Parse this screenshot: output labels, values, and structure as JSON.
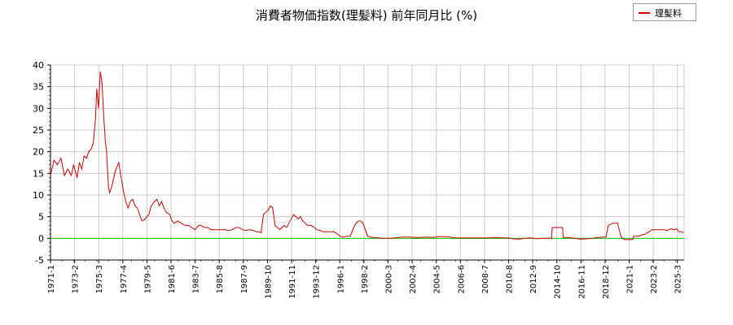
{
  "title": "消費者物価指数(理髪料) 前年同月比 (%)",
  "legend": {
    "label": "理髪料"
  },
  "colors": {
    "series": "#cc0000",
    "zero_line": "#00cc00",
    "grid": "#cccccc",
    "axis": "#000000"
  },
  "chart_data": {
    "type": "line",
    "title": "消費者物価指数(理髪料) 前年同月比 (%)",
    "xlabel": "",
    "ylabel": "",
    "grid": true,
    "legend_position": "top-right",
    "ylim": [
      -5,
      40
    ],
    "yticks": [
      -5,
      0,
      5,
      10,
      15,
      20,
      25,
      30,
      35,
      40
    ],
    "xticks": [
      "1971-1",
      "1973-2",
      "1975-3",
      "1977-4",
      "1979-5",
      "1981-6",
      "1983-7",
      "1985-8",
      "1987-9",
      "1989-10",
      "1991-11",
      "1993-12",
      "1996-1",
      "1998-2",
      "2000-3",
      "2002-4",
      "2004-5",
      "2006-6",
      "2008-7",
      "2010-8",
      "2012-9",
      "2014-10",
      "2016-11",
      "2018-12",
      "2021-1",
      "2023-2",
      "2025-3"
    ],
    "xrange": [
      1971.0,
      2025.75
    ],
    "series": [
      {
        "name": "理髪料",
        "points": [
          [
            1971.0,
            14.5
          ],
          [
            1971.3,
            18.0
          ],
          [
            1971.6,
            17.0
          ],
          [
            1971.9,
            18.5
          ],
          [
            1972.2,
            14.5
          ],
          [
            1972.5,
            16.0
          ],
          [
            1972.8,
            14.5
          ],
          [
            1973.0,
            17.0
          ],
          [
            1973.3,
            14.0
          ],
          [
            1973.5,
            17.5
          ],
          [
            1973.7,
            16.0
          ],
          [
            1973.9,
            19.0
          ],
          [
            1974.1,
            18.5
          ],
          [
            1974.3,
            20.0
          ],
          [
            1974.5,
            20.5
          ],
          [
            1974.7,
            22.0
          ],
          [
            1974.9,
            28.0
          ],
          [
            1975.0,
            34.5
          ],
          [
            1975.15,
            30.0
          ],
          [
            1975.3,
            38.5
          ],
          [
            1975.45,
            36.0
          ],
          [
            1975.6,
            28.0
          ],
          [
            1975.75,
            22.0
          ],
          [
            1975.85,
            20.0
          ],
          [
            1976.0,
            12.0
          ],
          [
            1976.1,
            10.5
          ],
          [
            1976.3,
            12.0
          ],
          [
            1976.6,
            15.5
          ],
          [
            1976.9,
            17.5
          ],
          [
            1977.1,
            14.0
          ],
          [
            1977.3,
            11.0
          ],
          [
            1977.5,
            8.5
          ],
          [
            1977.7,
            7.0
          ],
          [
            1977.9,
            8.5
          ],
          [
            1978.1,
            9.0
          ],
          [
            1978.3,
            7.5
          ],
          [
            1978.5,
            7.0
          ],
          [
            1978.7,
            5.5
          ],
          [
            1978.9,
            4.0
          ],
          [
            1979.2,
            4.5
          ],
          [
            1979.5,
            5.5
          ],
          [
            1979.7,
            7.5
          ],
          [
            1980.0,
            8.5
          ],
          [
            1980.2,
            9.0
          ],
          [
            1980.4,
            7.5
          ],
          [
            1980.6,
            8.5
          ],
          [
            1980.8,
            7.0
          ],
          [
            1981.0,
            6.0
          ],
          [
            1981.3,
            5.5
          ],
          [
            1981.5,
            4.0
          ],
          [
            1981.7,
            3.5
          ],
          [
            1982.0,
            4.0
          ],
          [
            1982.3,
            3.5
          ],
          [
            1982.6,
            3.0
          ],
          [
            1982.9,
            3.0
          ],
          [
            1983.2,
            2.5
          ],
          [
            1983.5,
            2.0
          ],
          [
            1983.8,
            3.0
          ],
          [
            1984.0,
            3.0
          ],
          [
            1984.3,
            2.5
          ],
          [
            1984.6,
            2.5
          ],
          [
            1984.9,
            2.0
          ],
          [
            1985.2,
            2.0
          ],
          [
            1985.5,
            2.0
          ],
          [
            1985.8,
            2.0
          ],
          [
            1986.1,
            2.0
          ],
          [
            1986.4,
            1.8
          ],
          [
            1986.7,
            2.0
          ],
          [
            1987.0,
            2.5
          ],
          [
            1987.3,
            2.5
          ],
          [
            1987.6,
            2.0
          ],
          [
            1987.9,
            1.8
          ],
          [
            1988.2,
            2.0
          ],
          [
            1988.5,
            1.8
          ],
          [
            1988.8,
            1.5
          ],
          [
            1989.0,
            1.5
          ],
          [
            1989.2,
            1.3
          ],
          [
            1989.4,
            5.5
          ],
          [
            1989.6,
            6.0
          ],
          [
            1989.8,
            6.5
          ],
          [
            1990.0,
            7.5
          ],
          [
            1990.2,
            7.0
          ],
          [
            1990.4,
            3.0
          ],
          [
            1990.6,
            2.5
          ],
          [
            1990.8,
            2.0
          ],
          [
            1991.0,
            2.5
          ],
          [
            1991.2,
            3.0
          ],
          [
            1991.4,
            2.5
          ],
          [
            1991.6,
            3.5
          ],
          [
            1991.8,
            4.5
          ],
          [
            1992.0,
            5.5
          ],
          [
            1992.2,
            5.0
          ],
          [
            1992.4,
            4.5
          ],
          [
            1992.6,
            5.0
          ],
          [
            1992.8,
            4.0
          ],
          [
            1993.0,
            3.5
          ],
          [
            1993.2,
            3.0
          ],
          [
            1993.5,
            3.0
          ],
          [
            1993.8,
            2.5
          ],
          [
            1994.0,
            2.0
          ],
          [
            1994.3,
            1.8
          ],
          [
            1994.6,
            1.5
          ],
          [
            1994.9,
            1.5
          ],
          [
            1995.2,
            1.5
          ],
          [
            1995.5,
            1.5
          ],
          [
            1995.8,
            1.0
          ],
          [
            1996.0,
            0.5
          ],
          [
            1996.3,
            0.3
          ],
          [
            1996.6,
            0.5
          ],
          [
            1996.9,
            0.5
          ],
          [
            1997.2,
            2.5
          ],
          [
            1997.4,
            3.5
          ],
          [
            1997.6,
            4.0
          ],
          [
            1997.8,
            4.0
          ],
          [
            1998.0,
            3.5
          ],
          [
            1998.2,
            2.0
          ],
          [
            1998.4,
            0.5
          ],
          [
            1998.6,
            0.3
          ],
          [
            1998.9,
            0.2
          ],
          [
            1999.3,
            0.1
          ],
          [
            1999.8,
            0.0
          ],
          [
            2000.5,
            0.0
          ],
          [
            2001.0,
            0.2
          ],
          [
            2001.5,
            0.3
          ],
          [
            2002.0,
            0.3
          ],
          [
            2002.5,
            0.2
          ],
          [
            2003.0,
            0.2
          ],
          [
            2003.5,
            0.3
          ],
          [
            2004.0,
            0.2
          ],
          [
            2004.5,
            0.4
          ],
          [
            2005.0,
            0.4
          ],
          [
            2005.5,
            0.3
          ],
          [
            2006.0,
            0.1
          ],
          [
            2007.0,
            0.1
          ],
          [
            2008.0,
            0.1
          ],
          [
            2009.0,
            0.1
          ],
          [
            2009.5,
            0.2
          ],
          [
            2010.0,
            0.1
          ],
          [
            2010.5,
            0.1
          ],
          [
            2011.0,
            -0.1
          ],
          [
            2011.5,
            -0.2
          ],
          [
            2012.0,
            0.0
          ],
          [
            2012.5,
            0.1
          ],
          [
            2013.0,
            -0.1
          ],
          [
            2013.5,
            0.0
          ],
          [
            2014.0,
            0.0
          ],
          [
            2014.3,
            0.0
          ],
          [
            2014.35,
            2.5
          ],
          [
            2014.7,
            2.5
          ],
          [
            2015.0,
            2.5
          ],
          [
            2015.25,
            2.5
          ],
          [
            2015.3,
            0.2
          ],
          [
            2015.8,
            0.2
          ],
          [
            2016.3,
            0.0
          ],
          [
            2016.8,
            -0.2
          ],
          [
            2017.3,
            -0.1
          ],
          [
            2017.8,
            0.0
          ],
          [
            2018.3,
            0.2
          ],
          [
            2018.8,
            0.3
          ],
          [
            2019.0,
            0.3
          ],
          [
            2019.2,
            3.0
          ],
          [
            2019.6,
            3.5
          ],
          [
            2019.9,
            3.5
          ],
          [
            2020.0,
            3.5
          ],
          [
            2020.3,
            0.3
          ],
          [
            2020.6,
            -0.3
          ],
          [
            2021.0,
            -0.3
          ],
          [
            2021.3,
            -0.3
          ],
          [
            2021.4,
            0.5
          ],
          [
            2021.8,
            0.5
          ],
          [
            2022.1,
            0.8
          ],
          [
            2022.4,
            1.0
          ],
          [
            2022.7,
            1.5
          ],
          [
            2023.0,
            2.0
          ],
          [
            2023.3,
            2.0
          ],
          [
            2023.6,
            2.0
          ],
          [
            2024.0,
            2.0
          ],
          [
            2024.3,
            1.8
          ],
          [
            2024.6,
            2.2
          ],
          [
            2024.9,
            2.0
          ],
          [
            2025.1,
            2.2
          ],
          [
            2025.3,
            1.5
          ],
          [
            2025.5,
            1.5
          ],
          [
            2025.7,
            1.3
          ]
        ]
      }
    ]
  }
}
